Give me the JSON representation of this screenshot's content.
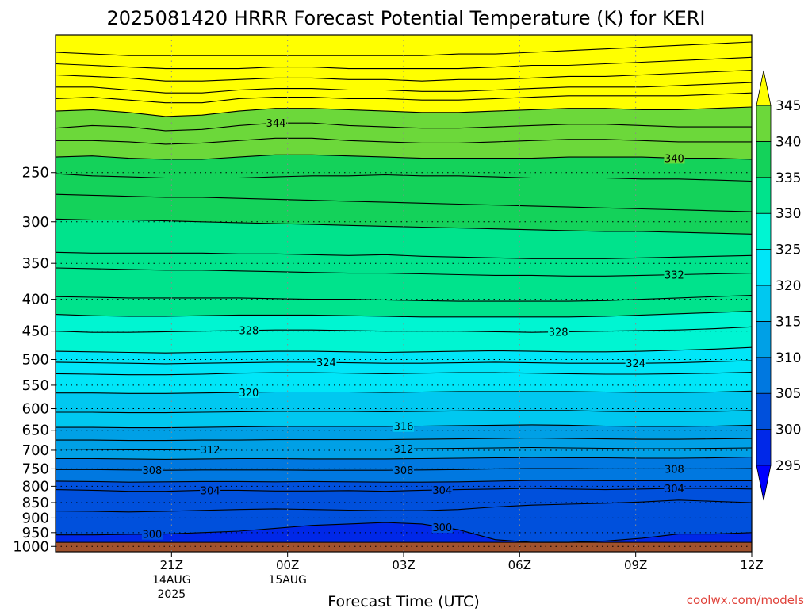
{
  "chart_data": {
    "type": "contour-filled time-height cross section",
    "title": "2025081420 HRRR Forecast Potential Temperature (K) for KERI",
    "xlabel": "Forecast Time (UTC)",
    "ylabel": "",
    "credit": "coolwx.com/models",
    "x_range_hours_from_21Z": [
      -3,
      15
    ],
    "x_ticks": [
      {
        "hour": 0,
        "label": "21Z",
        "sub1": "14AUG",
        "sub2": "2025"
      },
      {
        "hour": 3,
        "label": "00Z",
        "sub1": "15AUG",
        "sub2": ""
      },
      {
        "hour": 6,
        "label": "03Z",
        "sub1": "",
        "sub2": ""
      },
      {
        "hour": 9,
        "label": "06Z",
        "sub1": "",
        "sub2": ""
      },
      {
        "hour": 12,
        "label": "09Z",
        "sub1": "",
        "sub2": ""
      },
      {
        "hour": 15,
        "label": "12Z",
        "sub1": "",
        "sub2": ""
      }
    ],
    "y_axis_hPa": {
      "range": [
        1020,
        150
      ],
      "scale": "log",
      "ticks": [
        250,
        300,
        350,
        400,
        450,
        500,
        550,
        600,
        650,
        700,
        750,
        800,
        850,
        900,
        950,
        1000
      ]
    },
    "ground_pressure_hPa": 985,
    "colorbar": {
      "levels": [
        295,
        300,
        305,
        310,
        315,
        320,
        325,
        330,
        335,
        340,
        345
      ],
      "colors": [
        "#0000ff",
        "#0028e8",
        "#0050dc",
        "#0078e0",
        "#00a0e6",
        "#00c8f0",
        "#00e6f8",
        "#00f5d2",
        "#00e38c",
        "#14d25a",
        "#6cd83a",
        "#b4e61e",
        "#e6f00a",
        "#ffff00"
      ]
    },
    "grid": true,
    "contours": [
      {
        "value": 300,
        "y": [
          958,
          958,
          956,
          955,
          950,
          945,
          935,
          925,
          920,
          915,
          920,
          940,
          975,
          985,
          985,
          980,
          970,
          955,
          955,
          950
        ],
        "labels": [
          {
            "hour": -0.5,
            "text": "300"
          },
          {
            "hour": 7,
            "text": "300"
          }
        ]
      },
      {
        "value": 302,
        "y": [
          877,
          878,
          880,
          878,
          875,
          872,
          870,
          872,
          874,
          876,
          876,
          872,
          864,
          858,
          855,
          852,
          848,
          842,
          846,
          850
        ],
        "labels": []
      },
      {
        "value": 304,
        "y": [
          810,
          812,
          815,
          815,
          812,
          812,
          814,
          814,
          813,
          815,
          812,
          810,
          808,
          806,
          808,
          810,
          808,
          806,
          806,
          808
        ],
        "labels": [
          {
            "hour": 1,
            "text": "304"
          },
          {
            "hour": 7,
            "text": "304"
          },
          {
            "hour": 13,
            "text": "304"
          }
        ]
      },
      {
        "value": 306,
        "y": [
          785,
          786,
          788,
          787,
          786,
          786,
          787,
          786,
          787,
          788,
          788,
          787,
          785,
          783,
          783,
          784,
          784,
          784,
          784,
          784
        ],
        "labels": []
      },
      {
        "value": 308,
        "y": [
          752,
          752,
          753,
          754,
          753,
          753,
          753,
          754,
          754,
          754,
          753,
          752,
          750,
          749,
          749,
          750,
          750,
          750,
          750,
          749
        ],
        "labels": [
          {
            "hour": -0.5,
            "text": "308"
          },
          {
            "hour": 6,
            "text": "308"
          },
          {
            "hour": 13,
            "text": "308"
          }
        ]
      },
      {
        "value": 310,
        "y": [
          722,
          722,
          723,
          724,
          723,
          722,
          722,
          723,
          723,
          723,
          722,
          721,
          720,
          719,
          720,
          720,
          721,
          721,
          720,
          718
        ],
        "labels": []
      },
      {
        "value": 312,
        "y": [
          697,
          698,
          699,
          699,
          698,
          697,
          697,
          697,
          697,
          697,
          696,
          695,
          694,
          693,
          694,
          695,
          696,
          696,
          695,
          694
        ],
        "labels": [
          {
            "hour": 1,
            "text": "312"
          },
          {
            "hour": 6,
            "text": "312"
          }
        ]
      },
      {
        "value": 314,
        "y": [
          674,
          674,
          675,
          675,
          674,
          674,
          673,
          673,
          673,
          673,
          672,
          671,
          670,
          669,
          670,
          671,
          672,
          672,
          671,
          670
        ],
        "labels": []
      },
      {
        "value": 316,
        "y": [
          643,
          643,
          644,
          644,
          643,
          642,
          641,
          641,
          641,
          641,
          640,
          639,
          638,
          637,
          638,
          640,
          641,
          641,
          640,
          638
        ],
        "labels": [
          {
            "hour": 6,
            "text": "316"
          }
        ]
      },
      {
        "value": 318,
        "y": [
          608,
          608,
          609,
          609,
          608,
          607,
          606,
          606,
          606,
          607,
          606,
          605,
          604,
          604,
          604,
          606,
          607,
          607,
          606,
          604
        ],
        "labels": []
      },
      {
        "value": 320,
        "y": [
          566,
          566,
          567,
          567,
          566,
          565,
          564,
          564,
          564,
          565,
          564,
          563,
          563,
          563,
          563,
          564,
          565,
          565,
          564,
          562
        ],
        "labels": [
          {
            "hour": 2,
            "text": "320"
          }
        ]
      },
      {
        "value": 322,
        "y": [
          527,
          528,
          529,
          529,
          528,
          526,
          525,
          525,
          526,
          527,
          526,
          525,
          525,
          526,
          527,
          528,
          528,
          527,
          526,
          524
        ],
        "labels": []
      },
      {
        "value": 324,
        "y": [
          505,
          506,
          507,
          508,
          507,
          506,
          505,
          505,
          506,
          507,
          507,
          506,
          505,
          506,
          507,
          507,
          507,
          506,
          504,
          502
        ],
        "labels": [
          {
            "hour": 4,
            "text": "324"
          },
          {
            "hour": 12,
            "text": "324"
          }
        ]
      },
      {
        "value": 326,
        "y": [
          485,
          486,
          487,
          488,
          487,
          486,
          485,
          485,
          486,
          487,
          486,
          485,
          484,
          485,
          486,
          486,
          485,
          483,
          481,
          478
        ],
        "labels": []
      },
      {
        "value": 328,
        "y": [
          450,
          452,
          452,
          451,
          450,
          449,
          448,
          448,
          449,
          450,
          450,
          450,
          451,
          452,
          451,
          450,
          449,
          448,
          446,
          443
        ],
        "labels": [
          {
            "hour": 2,
            "text": "328"
          },
          {
            "hour": 10,
            "text": "328"
          }
        ]
      },
      {
        "value": 330,
        "y": [
          423,
          425,
          426,
          426,
          425,
          424,
          424,
          424,
          425,
          426,
          427,
          427,
          427,
          427,
          427,
          426,
          424,
          422,
          420,
          418
        ],
        "labels": []
      },
      {
        "value": 331,
        "y": [
          396,
          397,
          398,
          398,
          398,
          398,
          399,
          400,
          400,
          401,
          402,
          403,
          403,
          403,
          403,
          402,
          400,
          398,
          396,
          394
        ],
        "labels": []
      },
      {
        "value": 332,
        "y": [
          356,
          357,
          358,
          359,
          359,
          360,
          361,
          362,
          363,
          363,
          364,
          365,
          366,
          366,
          367,
          367,
          366,
          365,
          364,
          363
        ],
        "labels": [
          {
            "hour": 13,
            "text": "332"
          }
        ]
      },
      {
        "value": 334,
        "y": [
          336,
          337,
          337,
          337,
          337,
          338,
          338,
          339,
          340,
          339,
          341,
          342,
          343,
          344,
          344,
          344,
          343,
          342,
          341,
          340
        ],
        "labels": []
      },
      {
        "value": 335,
        "y": [
          297,
          298,
          298,
          299,
          300,
          301,
          302,
          303,
          304,
          305,
          306,
          307,
          308,
          309,
          310,
          311,
          311,
          312,
          313,
          314
        ],
        "labels": []
      },
      {
        "value": 336,
        "y": [
          271,
          272,
          273,
          274,
          274,
          275,
          276,
          277,
          278,
          279,
          280,
          281,
          282,
          283,
          284,
          285,
          286,
          287,
          288,
          289
        ],
        "labels": []
      },
      {
        "value": 338,
        "y": [
          251,
          253,
          254,
          255,
          255,
          255,
          254,
          253,
          253,
          252,
          253,
          253,
          254,
          255,
          255,
          255,
          256,
          256,
          257,
          258
        ],
        "labels": []
      },
      {
        "value": 340,
        "y": [
          236,
          235,
          237,
          238,
          238,
          236,
          234,
          234,
          235,
          236,
          237,
          237,
          237,
          237,
          236,
          236,
          236,
          237,
          237,
          238
        ],
        "labels": [
          {
            "hour": 13,
            "text": "340"
          }
        ]
      },
      {
        "value": 342,
        "y": [
          222,
          222,
          223,
          225,
          224,
          222,
          220,
          220,
          222,
          223,
          224,
          224,
          223,
          222,
          221,
          221,
          222,
          223,
          223,
          223
        ],
        "labels": []
      },
      {
        "value": 344,
        "y": [
          212,
          210,
          211,
          214,
          213,
          210,
          208,
          208,
          210,
          211,
          212,
          212,
          211,
          210,
          209,
          209,
          210,
          211,
          211,
          211
        ],
        "labels": [
          {
            "hour": 2.7,
            "text": "344"
          }
        ]
      },
      {
        "value": 346,
        "y": [
          199,
          198,
          200,
          203,
          202,
          199,
          197,
          197,
          198,
          199,
          200,
          200,
          199,
          198,
          197,
          197,
          198,
          198,
          197,
          196
        ],
        "labels": []
      },
      {
        "value": 348,
        "y": [
          190,
          189,
          191,
          193,
          193,
          190,
          189,
          189,
          190,
          190,
          191,
          191,
          190,
          189,
          188,
          188,
          188,
          188,
          187,
          186
        ],
        "labels": []
      },
      {
        "value": 350,
        "y": [
          182,
          182,
          184,
          186,
          186,
          184,
          183,
          183,
          184,
          184,
          185,
          185,
          184,
          183,
          182,
          182,
          182,
          181,
          180,
          179
        ],
        "labels": []
      },
      {
        "value": 352,
        "y": [
          174,
          175,
          176,
          178,
          178,
          177,
          176,
          176,
          177,
          177,
          178,
          177,
          177,
          176,
          175,
          175,
          174,
          173,
          172,
          171
        ],
        "labels": []
      },
      {
        "value": 354,
        "y": [
          167,
          168,
          169,
          170,
          170,
          170,
          169,
          169,
          170,
          170,
          170,
          170,
          169,
          168,
          168,
          167,
          166,
          165,
          164,
          163
        ],
        "labels": []
      },
      {
        "value": 356,
        "y": [
          160,
          161,
          162,
          162,
          162,
          162,
          162,
          162,
          162,
          162,
          162,
          161,
          161,
          160,
          159,
          158,
          157,
          156,
          155,
          154
        ],
        "labels": []
      }
    ]
  }
}
